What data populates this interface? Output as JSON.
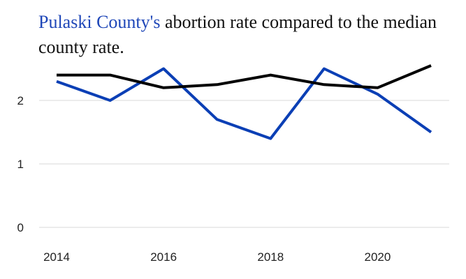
{
  "title": {
    "highlight": "Pulaski County's",
    "rest": " abortion rate compared to the median county rate."
  },
  "colors": {
    "county": "#0b3fb5",
    "median": "#000000",
    "grid": "#d9d9d9",
    "title_highlight": "#1f47b8"
  },
  "chart_data": {
    "type": "line",
    "title": "Pulaski County's abortion rate compared to the median county rate.",
    "x": [
      2014,
      2015,
      2016,
      2017,
      2018,
      2019,
      2020,
      2021
    ],
    "x_ticks": [
      "2014",
      "2016",
      "2018",
      "2020"
    ],
    "y_ticks": [
      "0",
      "1",
      "2"
    ],
    "ylim": [
      0,
      2.65
    ],
    "grid": true,
    "legend": "none",
    "series": [
      {
        "values": [
          2.3,
          2.0,
          2.5,
          1.7,
          1.4,
          2.5,
          2.1,
          1.5
        ],
        "color": "#0b3fb5"
      },
      {
        "values": [
          2.4,
          2.4,
          2.2,
          2.25,
          2.4,
          2.25,
          2.2,
          2.55
        ],
        "color": "#000000"
      }
    ]
  }
}
